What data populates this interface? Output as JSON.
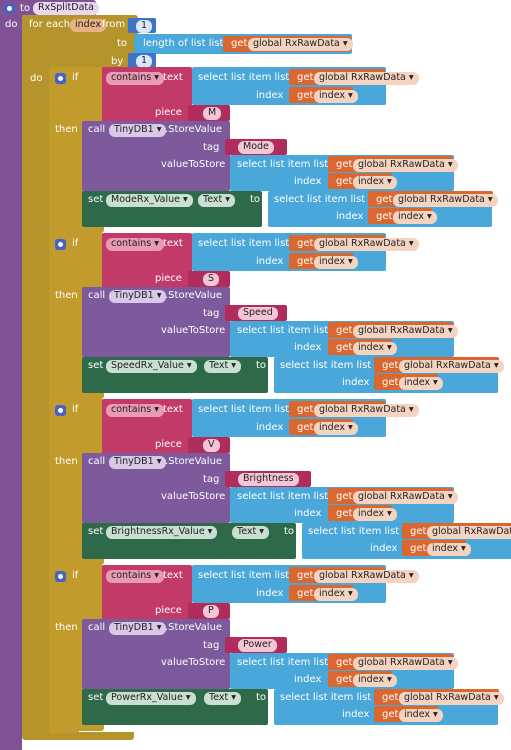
{
  "procedure": {
    "keyword_to": "to",
    "name": "RxSplitData",
    "keyword_do": "do"
  },
  "foreach": {
    "label": "for each",
    "var": "index",
    "from": "from",
    "from_val": "1",
    "to": "to",
    "length_label": "length of list  list",
    "by": "by",
    "by_val": "1",
    "do": "do"
  },
  "common": {
    "if": "if",
    "then": "then",
    "contains": "contains ▾",
    "text": "text",
    "piece": "piece",
    "select_item": "select list item  list",
    "index": "index",
    "get": "get",
    "rxraw": "global RxRawData ▾",
    "index_var": "index ▾",
    "call": "call",
    "tinydb": "TinyDB1 ▾",
    "storevalue": ".StoreValue",
    "tag": "tag",
    "value_to_store": "valueToStore",
    "set": "set",
    "to": "to",
    "text_prop": "Text ▾"
  },
  "blocks": [
    {
      "piece": "M",
      "tag": "Mode",
      "component": "ModeRx_Value ▾"
    },
    {
      "piece": "S",
      "tag": "Speed",
      "component": "SpeedRx_Value ▾"
    },
    {
      "piece": "V",
      "tag": "Brightness",
      "component": "BrightnessRx_Value ▾"
    },
    {
      "piece": "P",
      "tag": "Power",
      "component": "PowerRx_Value ▾"
    }
  ],
  "colors": {
    "procedure": "#7f5296",
    "control": "#b5942c",
    "logic": "#c23a67",
    "list": "#4aa7d9",
    "variable": "#d9672f",
    "setter": "#2e6a4a",
    "tinydb": "#7d5a9c",
    "text": "#b02c5c"
  }
}
